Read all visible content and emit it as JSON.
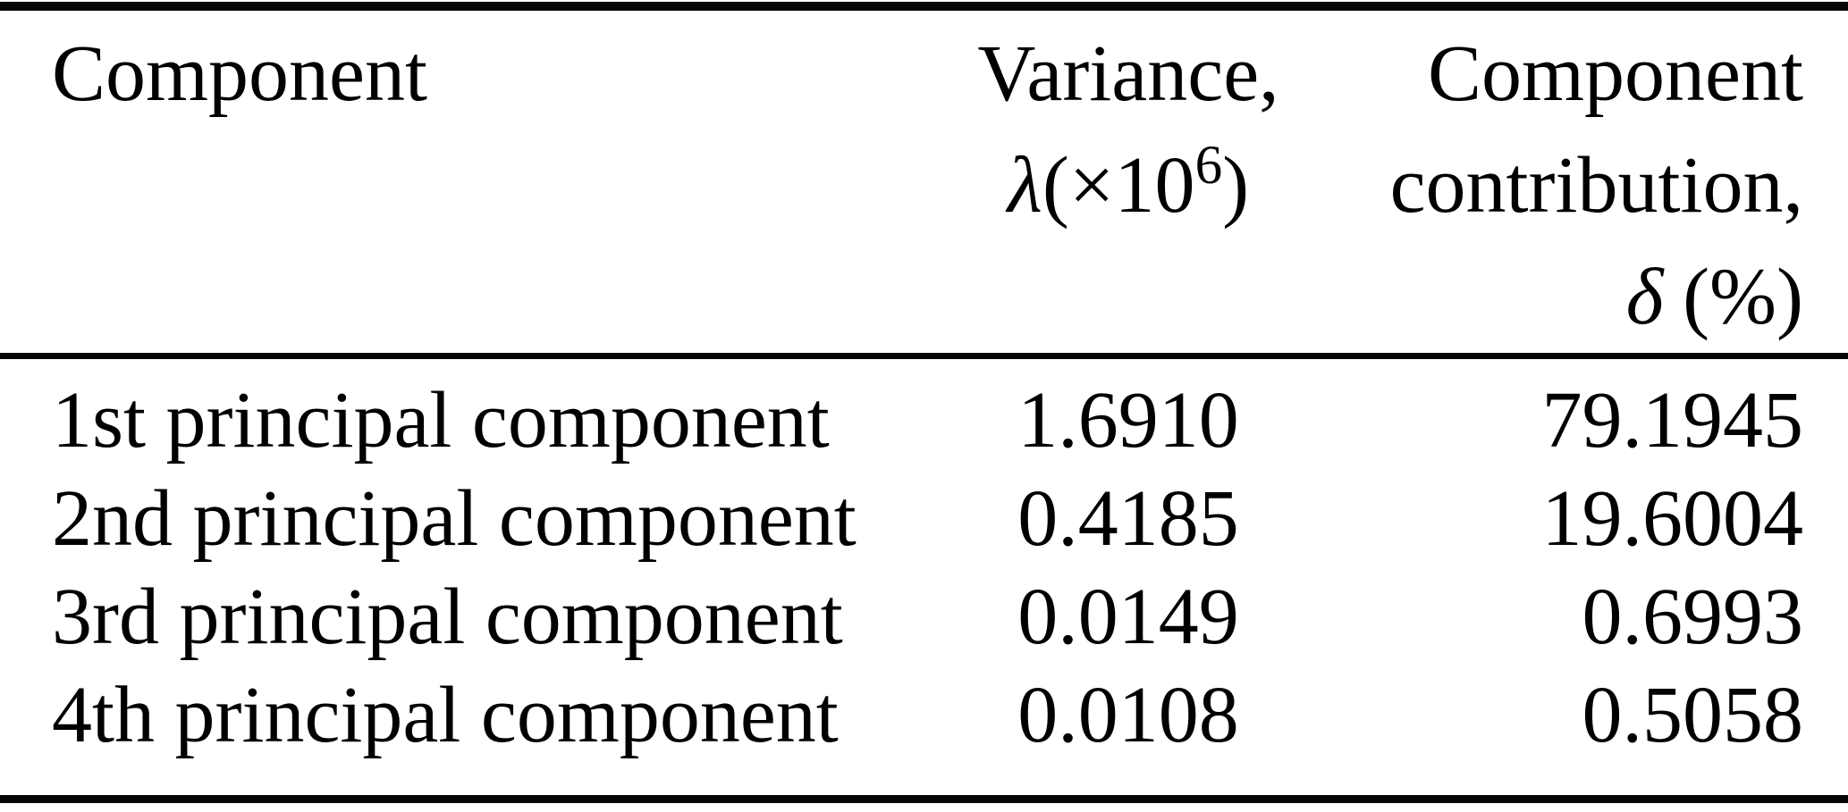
{
  "colors": {
    "text": "#000000",
    "background": "#ffffff",
    "rule": "#050505"
  },
  "header": {
    "component": "Component",
    "variance_line1": "Variance,",
    "variance_lambda": "λ",
    "variance_open": "(×10",
    "variance_exponent": "6",
    "variance_close": ")",
    "contribution_line1": "Component",
    "contribution_line2": "contribution,",
    "contribution_delta": "δ",
    "contribution_unit": "(%)"
  },
  "rows": [
    {
      "component": "1st principal component",
      "variance": "1.6910",
      "contribution": "79.1945"
    },
    {
      "component": "2nd principal component",
      "variance": "0.4185",
      "contribution": "19.6004"
    },
    {
      "component": "3rd principal component",
      "variance": "0.0149",
      "contribution": "0.6993"
    },
    {
      "component": "4th principal component",
      "variance": "0.0108",
      "contribution": "0.5058"
    }
  ],
  "chart_data": {
    "type": "table",
    "columns": [
      "Component",
      "Variance, λ(×10⁶)",
      "Component contribution, δ (%)"
    ],
    "rows": [
      [
        "1st principal component",
        1.691,
        79.1945
      ],
      [
        "2nd principal component",
        0.4185,
        19.6004
      ],
      [
        "3rd principal component",
        0.0149,
        0.6993
      ],
      [
        "4th principal component",
        0.0108,
        0.5058
      ]
    ]
  }
}
